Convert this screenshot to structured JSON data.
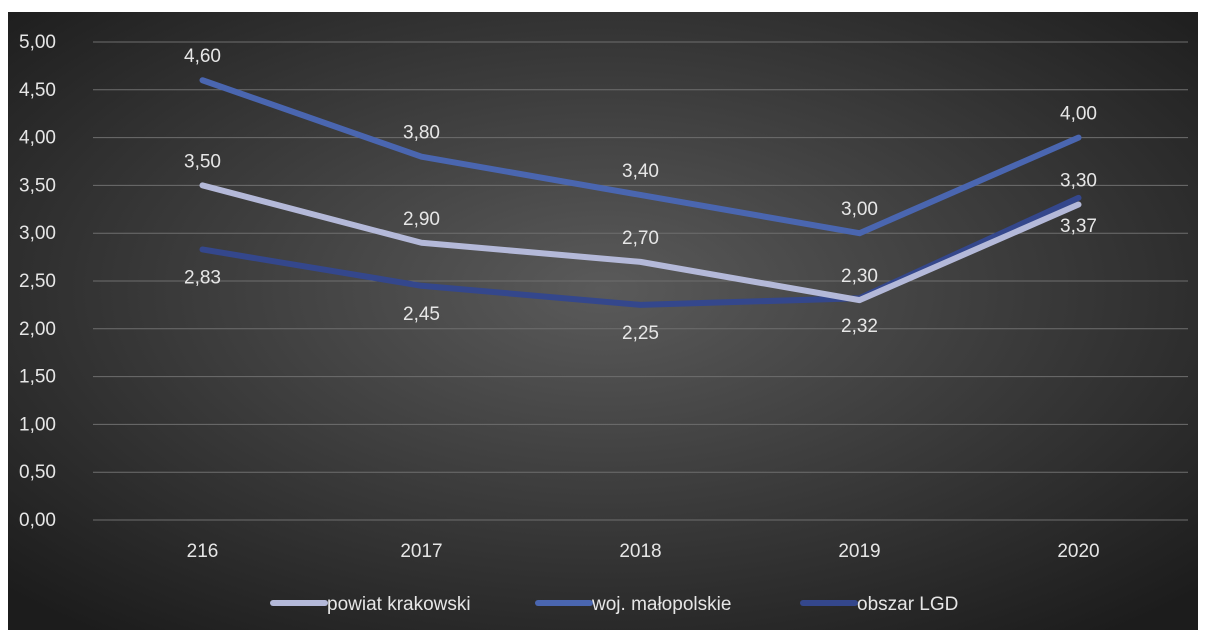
{
  "chart_data": {
    "type": "line",
    "title": "",
    "xlabel": "",
    "ylabel": "",
    "categories": [
      "216",
      "2017",
      "2018",
      "2019",
      "2020"
    ],
    "y_ticks": [
      "0,00",
      "0,50",
      "1,00",
      "1,50",
      "2,00",
      "2,50",
      "3,00",
      "3,50",
      "4,00",
      "4,50",
      "5,00"
    ],
    "ylim": [
      0,
      5
    ],
    "grid": true,
    "legend_position": "bottom",
    "series": [
      {
        "name": "powiat krakowski",
        "color": "#b4b9d9",
        "values": [
          3.5,
          2.9,
          2.7,
          2.3,
          3.3
        ],
        "labels": [
          "3,50",
          "2,90",
          "2,70",
          "2,30",
          "3,30"
        ],
        "label_position": "above"
      },
      {
        "name": "woj. małopolskie",
        "color": "#4a66b0",
        "values": [
          4.6,
          3.8,
          3.4,
          3.0,
          4.0
        ],
        "labels": [
          "4,60",
          "3,80",
          "3,40",
          "3,00",
          "4,00"
        ],
        "label_position": "above"
      },
      {
        "name": "obszar LGD",
        "color": "#34478c",
        "values": [
          2.83,
          2.45,
          2.25,
          2.32,
          3.37
        ],
        "labels": [
          "2,83",
          "2,45",
          "2,25",
          "2,32",
          "3,37"
        ],
        "label_position": "below"
      }
    ]
  }
}
